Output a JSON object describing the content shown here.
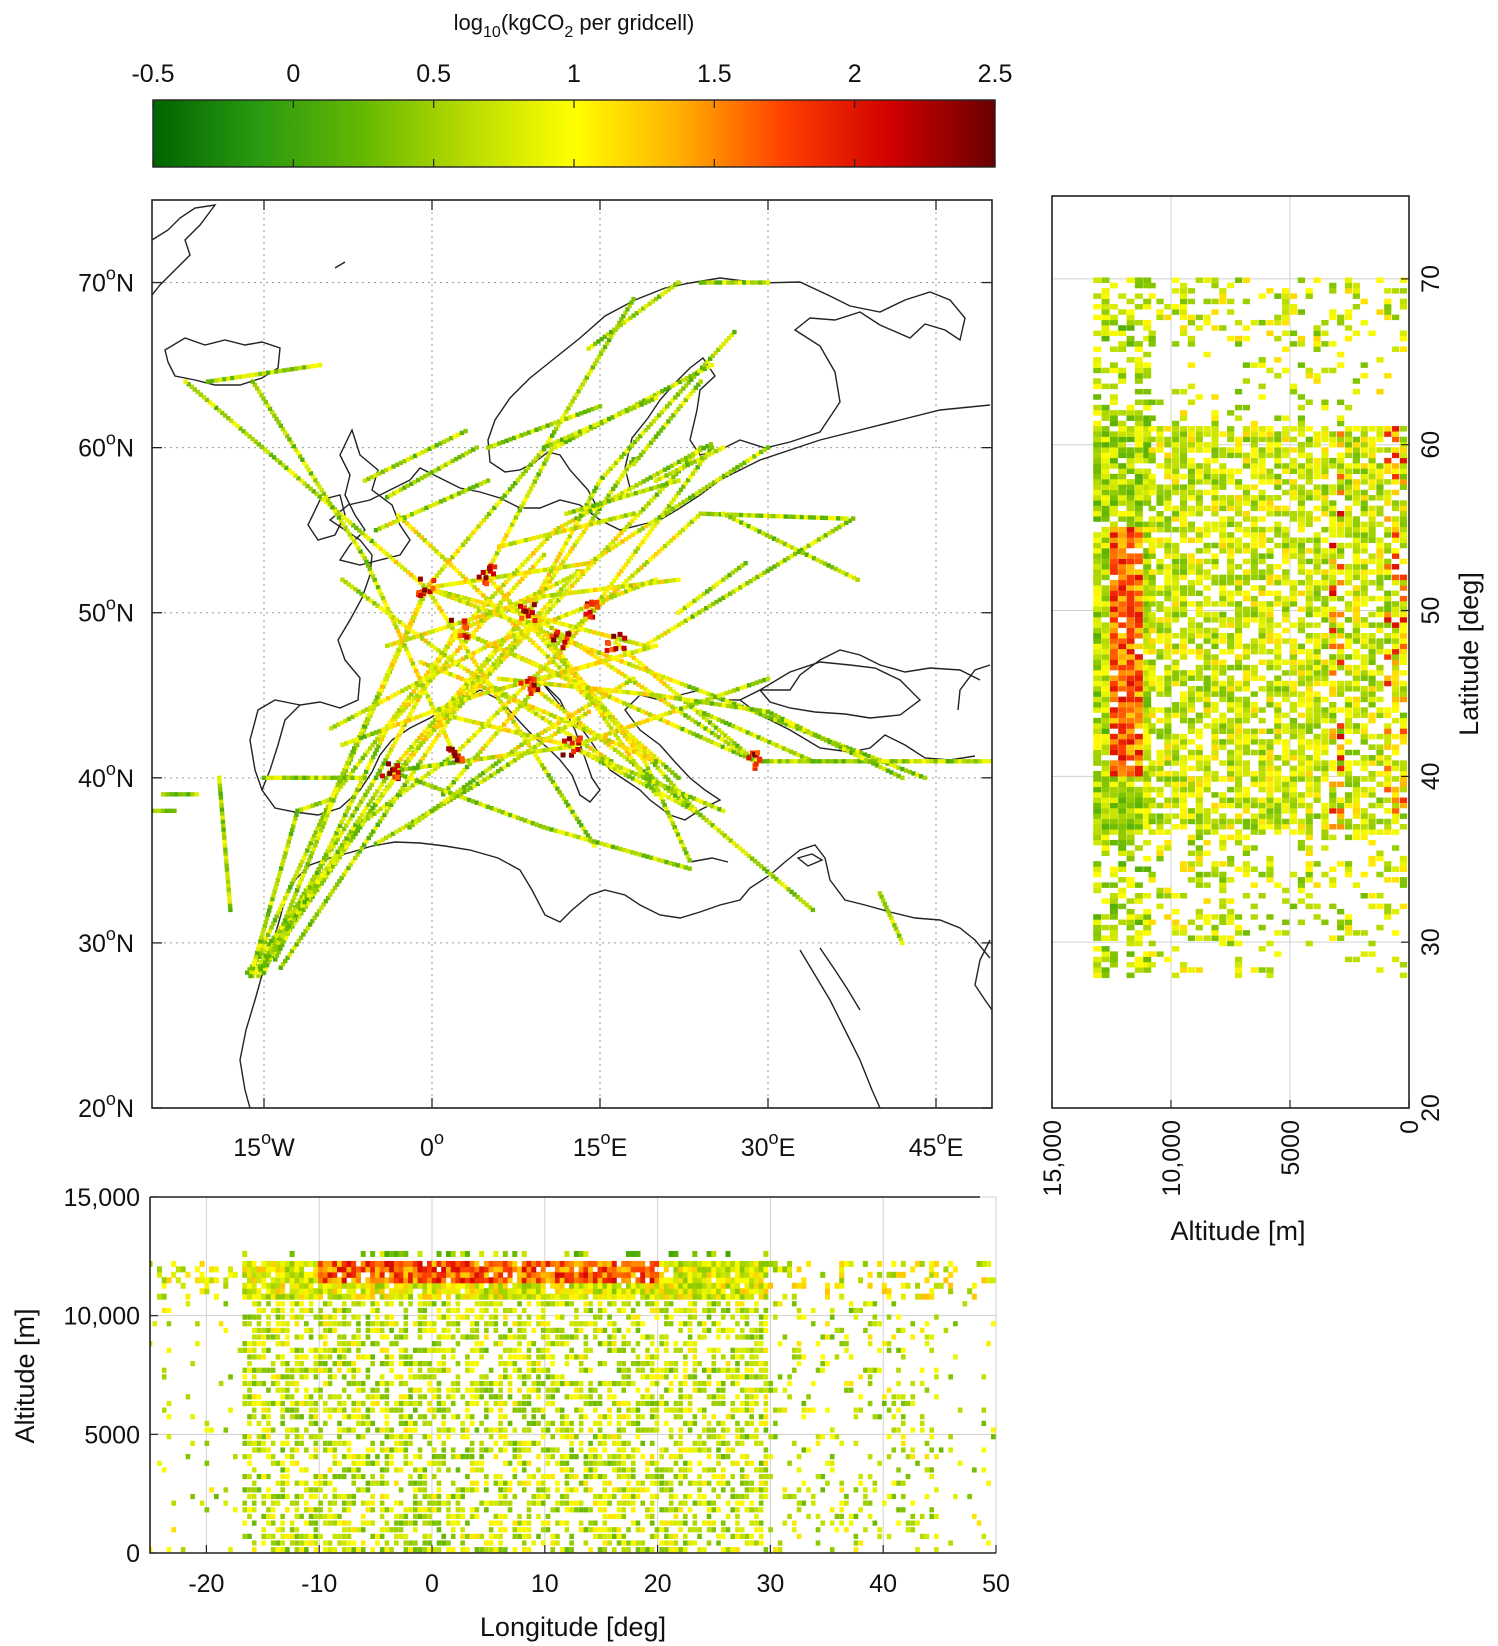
{
  "colorbar": {
    "title": "log10(kgCO2 per gridcell)",
    "title_parts": {
      "pre": "log",
      "sub1": "10",
      "mid": "(kgCO",
      "sub2": "2",
      "post": " per gridcell)"
    },
    "range": [
      -0.5,
      2.5
    ],
    "ticks": [
      "-0.5",
      "0",
      "0.5",
      "1",
      "1.5",
      "2",
      "2.5"
    ],
    "tick_values": [
      -0.5,
      0,
      0.5,
      1,
      1.5,
      2,
      2.5
    ],
    "colors": [
      "#006400",
      "#2a9a10",
      "#66b800",
      "#b8dc00",
      "#ffff00",
      "#ffb000",
      "#ff4000",
      "#d00000",
      "#6a0000"
    ]
  },
  "map": {
    "lon_range": [
      -25,
      50
    ],
    "lat_range": [
      20,
      75
    ],
    "lat_ticks": [
      {
        "value": 70,
        "num": "70",
        "hemi": "N"
      },
      {
        "value": 60,
        "num": "60",
        "hemi": "N"
      },
      {
        "value": 50,
        "num": "50",
        "hemi": "N"
      },
      {
        "value": 40,
        "num": "40",
        "hemi": "N"
      },
      {
        "value": 30,
        "num": "30",
        "hemi": "N"
      },
      {
        "value": 20,
        "num": "20",
        "hemi": "N"
      }
    ],
    "lon_ticks": [
      {
        "value": -15,
        "num": "15",
        "hemi": "W"
      },
      {
        "value": 0,
        "num": "0",
        "hemi": ""
      },
      {
        "value": 15,
        "num": "15",
        "hemi": "E"
      },
      {
        "value": 30,
        "num": "30",
        "hemi": "E"
      },
      {
        "value": 45,
        "num": "45",
        "hemi": "E"
      }
    ],
    "degree_symbol": "o",
    "grid": "dotted"
  },
  "lat_alt_panel": {
    "ylabel": "Latitude [deg]",
    "xlabel": "Altitude [m]",
    "alt_range": [
      15000,
      0
    ],
    "lat_range": [
      20,
      75
    ],
    "x_ticks": [
      {
        "value": 15000,
        "label": "15,000"
      },
      {
        "value": 10000,
        "label": "10,000"
      },
      {
        "value": 5000,
        "label": "5000"
      },
      {
        "value": 0,
        "label": "0"
      }
    ],
    "y_ticks": [
      "70",
      "60",
      "50",
      "40",
      "30",
      "20"
    ],
    "y_tick_values": [
      70,
      60,
      50,
      40,
      30,
      20
    ]
  },
  "lon_alt_panel": {
    "ylabel": "Altitude [m]",
    "xlabel": "Longitude [deg]",
    "lon_range": [
      -25,
      50
    ],
    "alt_range": [
      0,
      15000
    ],
    "x_ticks": [
      "-20",
      "-10",
      "0",
      "10",
      "20",
      "30",
      "40",
      "50"
    ],
    "x_tick_values": [
      -20,
      -10,
      0,
      10,
      20,
      30,
      40,
      50
    ],
    "y_ticks": [
      {
        "value": 15000,
        "label": "15,000"
      },
      {
        "value": 10000,
        "label": "10,000"
      },
      {
        "value": 5000,
        "label": "5000"
      },
      {
        "value": 0,
        "label": "0"
      }
    ]
  },
  "chart_data": {
    "type": "heatmap",
    "title": "",
    "colorbar_label": "log10(kgCO2 per gridcell)",
    "value_range": [
      -0.5,
      2.5
    ],
    "panels": [
      {
        "name": "map",
        "xlabel": "",
        "ylabel": "",
        "x_range": [
          -25,
          50
        ],
        "y_range": [
          20,
          75
        ]
      },
      {
        "name": "lat-alt",
        "xlabel": "Altitude [m]",
        "ylabel": "Latitude [deg]",
        "x_range": [
          15000,
          0
        ],
        "y_range": [
          20,
          75
        ]
      },
      {
        "name": "lon-alt",
        "xlabel": "Longitude [deg]",
        "ylabel": "Altitude [m]",
        "x_range": [
          -25,
          50
        ],
        "y_range": [
          0,
          15000
        ]
      }
    ]
  }
}
